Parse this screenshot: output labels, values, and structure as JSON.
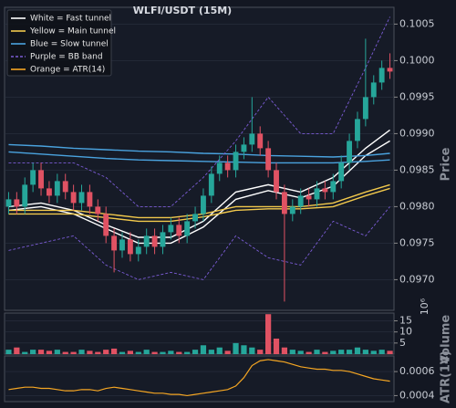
{
  "chart_data": [
    {
      "type": "candlestick",
      "title": "WLFI/USDT (15M)",
      "ylabel": "Price",
      "up_color": "#26a69a",
      "down_color": "#e05263",
      "open": [
        0.098,
        0.0981,
        0.098,
        0.0983,
        0.0985,
        0.09825,
        0.09815,
        0.09835,
        0.0982,
        0.09805,
        0.0982,
        0.098,
        0.0979,
        0.0976,
        0.0974,
        0.09755,
        0.09735,
        0.09745,
        0.0976,
        0.09745,
        0.09765,
        0.09775,
        0.0976,
        0.0978,
        0.0979,
        0.09815,
        0.09845,
        0.0986,
        0.0985,
        0.09875,
        0.09885,
        0.099,
        0.0988,
        0.0985,
        0.0982,
        0.0979,
        0.098,
        0.09815,
        0.0981,
        0.09825,
        0.0982,
        0.09835,
        0.0986,
        0.0989,
        0.0992,
        0.0995,
        0.0997,
        0.0999
      ],
      "high": [
        0.0982,
        0.0982,
        0.0984,
        0.0986,
        0.0986,
        0.09835,
        0.09845,
        0.09845,
        0.0983,
        0.0983,
        0.0983,
        0.0981,
        0.098,
        0.0977,
        0.09765,
        0.09765,
        0.09755,
        0.0977,
        0.0977,
        0.09775,
        0.09785,
        0.09785,
        0.0979,
        0.098,
        0.09825,
        0.09855,
        0.0987,
        0.0987,
        0.09885,
        0.09895,
        0.0995,
        0.0991,
        0.0989,
        0.0986,
        0.0983,
        0.0981,
        0.09825,
        0.09825,
        0.09835,
        0.09835,
        0.09845,
        0.0987,
        0.099,
        0.0993,
        0.1003,
        0.0998,
        0.1,
        0.1001
      ],
      "low": [
        0.0979,
        0.0979,
        0.0979,
        0.0982,
        0.09815,
        0.09805,
        0.09805,
        0.0981,
        0.09795,
        0.09795,
        0.0979,
        0.0978,
        0.0975,
        0.0971,
        0.0973,
        0.09725,
        0.09725,
        0.09735,
        0.09735,
        0.09735,
        0.09755,
        0.0975,
        0.0975,
        0.0977,
        0.0978,
        0.09805,
        0.09835,
        0.0984,
        0.0984,
        0.09865,
        0.09875,
        0.0987,
        0.0984,
        0.0981,
        0.0967,
        0.0978,
        0.0979,
        0.098,
        0.098,
        0.0981,
        0.0981,
        0.09825,
        0.0985,
        0.0988,
        0.0991,
        0.0994,
        0.0996,
        0.09975
      ],
      "close": [
        0.0981,
        0.098,
        0.0983,
        0.0985,
        0.09825,
        0.09815,
        0.09835,
        0.0982,
        0.09805,
        0.0982,
        0.098,
        0.0979,
        0.0976,
        0.0974,
        0.09755,
        0.09735,
        0.09745,
        0.0976,
        0.09745,
        0.09765,
        0.09775,
        0.0976,
        0.0978,
        0.0979,
        0.09815,
        0.09845,
        0.0986,
        0.0985,
        0.09875,
        0.09885,
        0.099,
        0.0988,
        0.0985,
        0.0982,
        0.0979,
        0.098,
        0.09815,
        0.0981,
        0.09825,
        0.0982,
        0.09835,
        0.0986,
        0.0989,
        0.0992,
        0.0995,
        0.0997,
        0.0999,
        0.09985
      ],
      "line_x": [
        0,
        4,
        8,
        12,
        16,
        20,
        24,
        28,
        32,
        36,
        40,
        44,
        47
      ],
      "series": [
        {
          "name": "White = Fast tunnel",
          "color": "#ffffff",
          "dashed": false,
          "lines": [
            [
              0.098,
              0.09805,
              0.09795,
              0.09775,
              0.09758,
              0.09758,
              0.0978,
              0.0982,
              0.0983,
              0.0982,
              0.0984,
              0.0988,
              0.09905
            ],
            [
              0.09795,
              0.098,
              0.0979,
              0.0977,
              0.0975,
              0.0975,
              0.09772,
              0.0981,
              0.09822,
              0.09812,
              0.09828,
              0.0987,
              0.0989
            ]
          ]
        },
        {
          "name": "Yellow = Main tunnel",
          "color": "#f2c94c",
          "dashed": false,
          "lines": [
            [
              0.09795,
              0.09795,
              0.09795,
              0.0979,
              0.09785,
              0.09785,
              0.0979,
              0.098,
              0.098,
              0.098,
              0.09805,
              0.0982,
              0.0983
            ],
            [
              0.0979,
              0.0979,
              0.0979,
              0.09785,
              0.0978,
              0.0978,
              0.09786,
              0.09795,
              0.09797,
              0.09797,
              0.098,
              0.09815,
              0.09825
            ]
          ]
        },
        {
          "name": "Blue = Slow tunnel",
          "color": "#4aa3df",
          "dashed": false,
          "lines": [
            [
              0.09885,
              0.09883,
              0.0988,
              0.09878,
              0.09876,
              0.09875,
              0.09873,
              0.09872,
              0.0987,
              0.09869,
              0.09868,
              0.0987,
              0.09873
            ],
            [
              0.09875,
              0.09872,
              0.09869,
              0.09866,
              0.09864,
              0.09863,
              0.09862,
              0.09861,
              0.0986,
              0.0986,
              0.0986,
              0.09862,
              0.09864
            ]
          ]
        },
        {
          "name": "Purple = BB band",
          "color": "#7b5cd6",
          "dashed": true,
          "lines": [
            [
              0.0986,
              0.0986,
              0.0986,
              0.0984,
              0.098,
              0.098,
              0.0984,
              0.0989,
              0.0995,
              0.099,
              0.099,
              0.0999,
              0.1006
            ],
            [
              0.0974,
              0.0975,
              0.0976,
              0.0972,
              0.097,
              0.0971,
              0.097,
              0.0976,
              0.0973,
              0.0972,
              0.0978,
              0.0976,
              0.098
            ]
          ]
        }
      ],
      "ylim": [
        0.09658,
        0.10073
      ],
      "yticks": [
        {
          "value": 0.097,
          "label": "0.0970"
        },
        {
          "value": 0.0975,
          "label": "0.0975"
        },
        {
          "value": 0.098,
          "label": "0.0980"
        },
        {
          "value": 0.0985,
          "label": "0.0985"
        },
        {
          "value": 0.099,
          "label": "0.0990"
        },
        {
          "value": 0.0995,
          "label": "0.0995"
        },
        {
          "value": 0.1,
          "label": "0.1000"
        },
        {
          "value": 0.1005,
          "label": "0.1005"
        }
      ],
      "grid": true,
      "legend": "upper left"
    },
    {
      "type": "bar",
      "ylabel": "Volume",
      "offset_label": "10⁶",
      "values": [
        2,
        3,
        1,
        2,
        2,
        1.5,
        2,
        1,
        1,
        2,
        1.5,
        1,
        2,
        2.5,
        1,
        1.5,
        1,
        2,
        1,
        1,
        1.5,
        1,
        1,
        2,
        4,
        2,
        3,
        1.5,
        5,
        4,
        3,
        2,
        18,
        7,
        3,
        2,
        1.5,
        1,
        2,
        1,
        1.5,
        2,
        2,
        3,
        2,
        1.5,
        2,
        1.5
      ],
      "ylim": [
        0,
        18.5
      ],
      "yticks": [
        5,
        10,
        15
      ],
      "grid": true
    },
    {
      "type": "line",
      "ylabel": "ATR(14)",
      "series": [
        {
          "name": "Orange = ATR(14)",
          "color": "#f5a623",
          "values": [
            0.00045,
            0.00046,
            0.00047,
            0.00047,
            0.00046,
            0.00046,
            0.00045,
            0.00044,
            0.00044,
            0.00045,
            0.00045,
            0.00044,
            0.00046,
            0.00047,
            0.00046,
            0.00045,
            0.00044,
            0.00043,
            0.00042,
            0.00042,
            0.00041,
            0.00041,
            0.0004,
            0.00041,
            0.00042,
            0.00043,
            0.00044,
            0.00045,
            0.00048,
            0.00055,
            0.00065,
            0.00069,
            0.0007,
            0.00069,
            0.00068,
            0.00066,
            0.00064,
            0.00063,
            0.00062,
            0.00062,
            0.00061,
            0.00061,
            0.0006,
            0.00058,
            0.00056,
            0.00054,
            0.00053,
            0.00052
          ]
        }
      ],
      "ylim": [
        0.00035,
        0.00073
      ],
      "yticks": [
        0.0004,
        0.0006
      ],
      "grid": true
    }
  ]
}
